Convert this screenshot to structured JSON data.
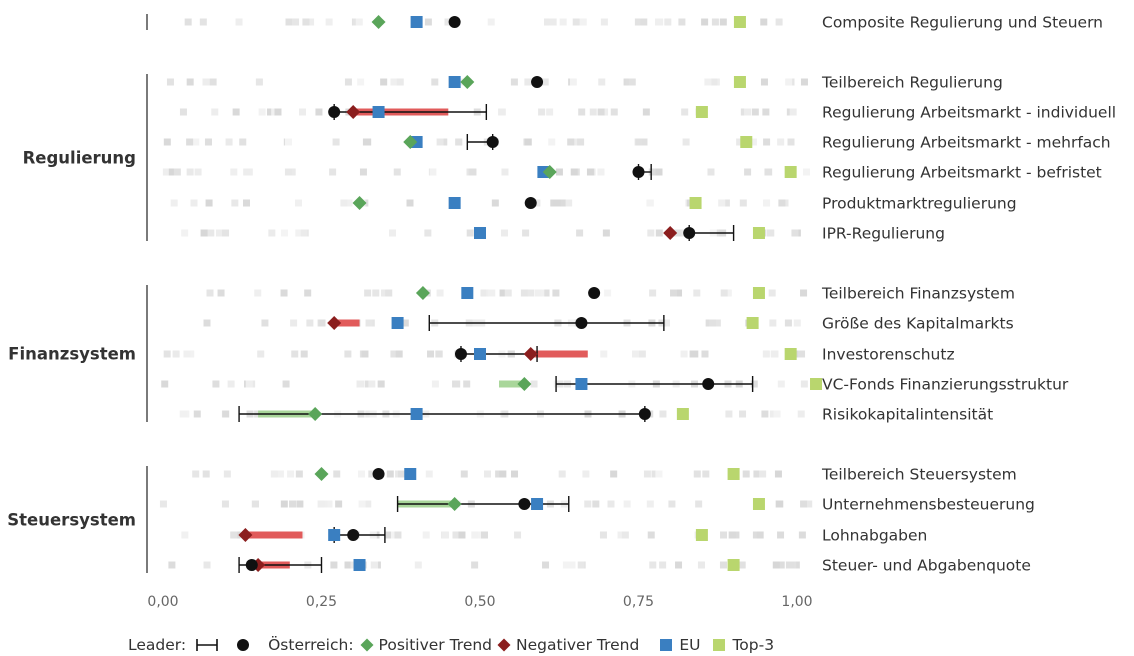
{
  "chart_data": {
    "type": "dot",
    "xlim": [
      0,
      1
    ],
    "x_ticks": [
      "0,00",
      "0,25",
      "0,50",
      "0,75",
      "1,00"
    ],
    "groups": [
      {
        "label": "",
        "rows": [
          0
        ]
      },
      {
        "label": "Regulierung",
        "rows": [
          1,
          2,
          3,
          4,
          5,
          6
        ]
      },
      {
        "label": "Finanzsystem",
        "rows": [
          7,
          8,
          9,
          10,
          11
        ]
      },
      {
        "label": "Steuersystem",
        "rows": [
          12,
          13,
          14,
          15
        ]
      }
    ],
    "rows": [
      {
        "label": "Composite Regulierung und Steuern",
        "austria": 0.46,
        "trend_type": "positive",
        "trend_value": 0.34,
        "eu": 0.4,
        "top3": 0.91,
        "leader": null
      },
      {
        "label": "Teilbereich Regulierung",
        "austria": 0.59,
        "trend_type": "positive",
        "trend_value": 0.48,
        "eu": 0.46,
        "top3": 0.91,
        "leader": null
      },
      {
        "label": "Regulierung Arbeitsmarkt - individuell",
        "austria": 0.27,
        "trend_type": "negative",
        "trend_value": 0.3,
        "trend_bar": [
          0.3,
          0.45
        ],
        "eu": 0.34,
        "top3": 0.85,
        "leader": [
          0.27,
          0.51
        ]
      },
      {
        "label": "Regulierung Arbeitsmarkt - mehrfach",
        "austria": 0.52,
        "trend_type": "positive",
        "trend_value": 0.39,
        "eu": 0.4,
        "top3": 0.92,
        "leader": [
          0.48,
          0.52
        ]
      },
      {
        "label": "Regulierung Arbeitsmarkt - befristet",
        "austria": 0.75,
        "trend_type": "positive",
        "trend_value": 0.61,
        "eu": 0.6,
        "top3": 0.99,
        "leader": [
          0.75,
          0.77
        ]
      },
      {
        "label": "Produktmarktregulierung",
        "austria": 0.58,
        "trend_type": "positive",
        "trend_value": 0.31,
        "eu": 0.46,
        "top3": 0.84,
        "leader": null
      },
      {
        "label": "IPR-Regulierung",
        "austria": 0.83,
        "trend_type": "negative",
        "trend_value": 0.8,
        "eu": 0.5,
        "top3": 0.94,
        "leader": [
          0.83,
          0.9
        ]
      },
      {
        "label": "Teilbereich Finanzsystem",
        "austria": 0.68,
        "trend_type": "positive",
        "trend_value": 0.41,
        "eu": 0.48,
        "top3": 0.94,
        "leader": null
      },
      {
        "label": "Größe des Kapitalmarkts",
        "austria": 0.66,
        "trend_type": "negative",
        "trend_value": 0.27,
        "trend_bar": [
          0.27,
          0.31
        ],
        "eu": 0.37,
        "top3": 0.93,
        "leader": [
          0.42,
          0.79
        ]
      },
      {
        "label": "Investorenschutz",
        "austria": 0.47,
        "trend_type": "negative",
        "trend_value": 0.58,
        "trend_bar": [
          0.58,
          0.67
        ],
        "eu": 0.5,
        "top3": 0.99,
        "leader": [
          0.47,
          0.59
        ]
      },
      {
        "label": "VC-Fonds Finanzierungsstruktur",
        "austria": 0.86,
        "trend_type": "positive",
        "trend_value": 0.57,
        "trend_bar": [
          0.53,
          0.57
        ],
        "eu": 0.66,
        "top3": 1.03,
        "leader": [
          0.62,
          0.93
        ]
      },
      {
        "label": "Risikokapitalintensität",
        "austria": 0.76,
        "trend_type": "positive",
        "trend_value": 0.24,
        "trend_bar": [
          0.15,
          0.24
        ],
        "eu": 0.4,
        "top3": 0.82,
        "leader": [
          0.12,
          0.76
        ]
      },
      {
        "label": "Teilbereich Steuersystem",
        "austria": 0.34,
        "trend_type": "positive",
        "trend_value": 0.25,
        "eu": 0.39,
        "top3": 0.9,
        "leader": null
      },
      {
        "label": "Unternehmensbesteuerung",
        "austria": 0.57,
        "trend_type": "positive",
        "trend_value": 0.46,
        "trend_bar": [
          0.37,
          0.46
        ],
        "eu": 0.59,
        "top3": 0.94,
        "leader": [
          0.37,
          0.64
        ]
      },
      {
        "label": "Lohnabgaben",
        "austria": 0.3,
        "trend_type": "negative",
        "trend_value": 0.13,
        "trend_bar": [
          0.13,
          0.22
        ],
        "eu": 0.27,
        "top3": 0.85,
        "leader": [
          0.27,
          0.35
        ]
      },
      {
        "label": "Steuer- und Abgabenquote",
        "austria": 0.14,
        "trend_type": "negative",
        "trend_value": 0.15,
        "trend_bar": [
          0.15,
          0.2
        ],
        "eu": 0.31,
        "top3": 0.9,
        "leader": [
          0.12,
          0.25
        ]
      }
    ],
    "legend": {
      "leader": "Leader:",
      "austria": "Österreich:",
      "positive": "Positiver Trend",
      "negative": "Negativer Trend",
      "eu": "EU",
      "top3": "Top-3"
    },
    "colors": {
      "austria": "#111111",
      "positive": "#5aa55a",
      "positive_bar": "#a9d69a",
      "negative": "#8b1e1e",
      "negative_bar": "#e15b5b",
      "eu": "#3a7fc1",
      "top3": "#b9d66e",
      "leader": "#111111",
      "background_markers": "#e6e6e6",
      "group_line": "#333333"
    }
  }
}
